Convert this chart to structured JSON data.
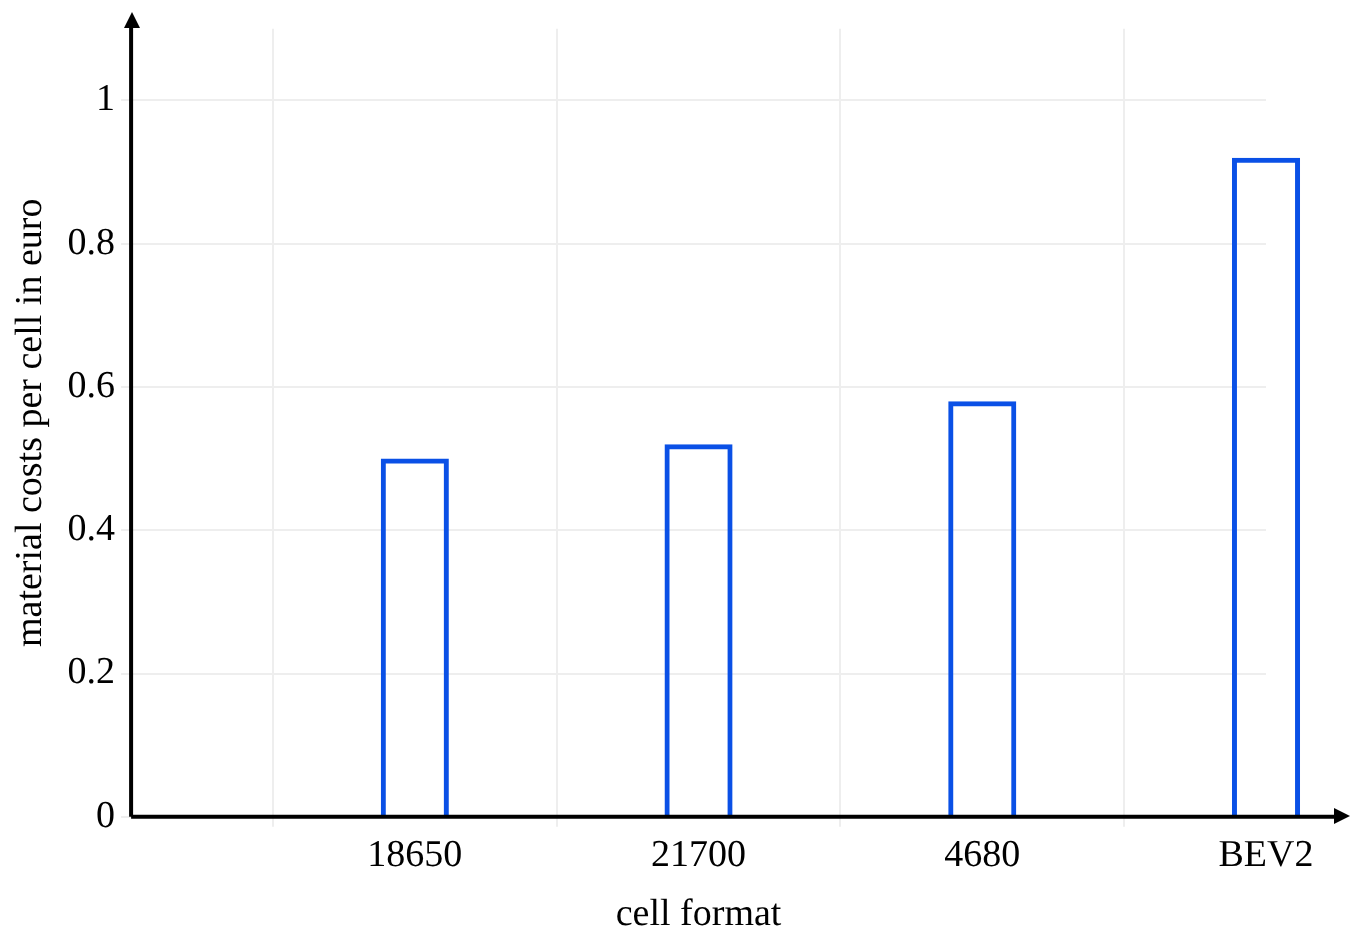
{
  "chart_data": {
    "type": "bar",
    "xlabel": "cell format",
    "ylabel": "material costs per cell in euro",
    "categories": [
      null,
      "18650",
      "21700",
      "4680",
      "BEV2"
    ],
    "values": [
      null,
      0.5,
      0.52,
      0.58,
      0.92
    ],
    "color": "#0a50e6",
    "ylim": [
      0,
      1.1
    ],
    "yticks": [
      0,
      0.2,
      0.4,
      0.6,
      0.8,
      1
    ],
    "grid": true,
    "legend": false
  }
}
